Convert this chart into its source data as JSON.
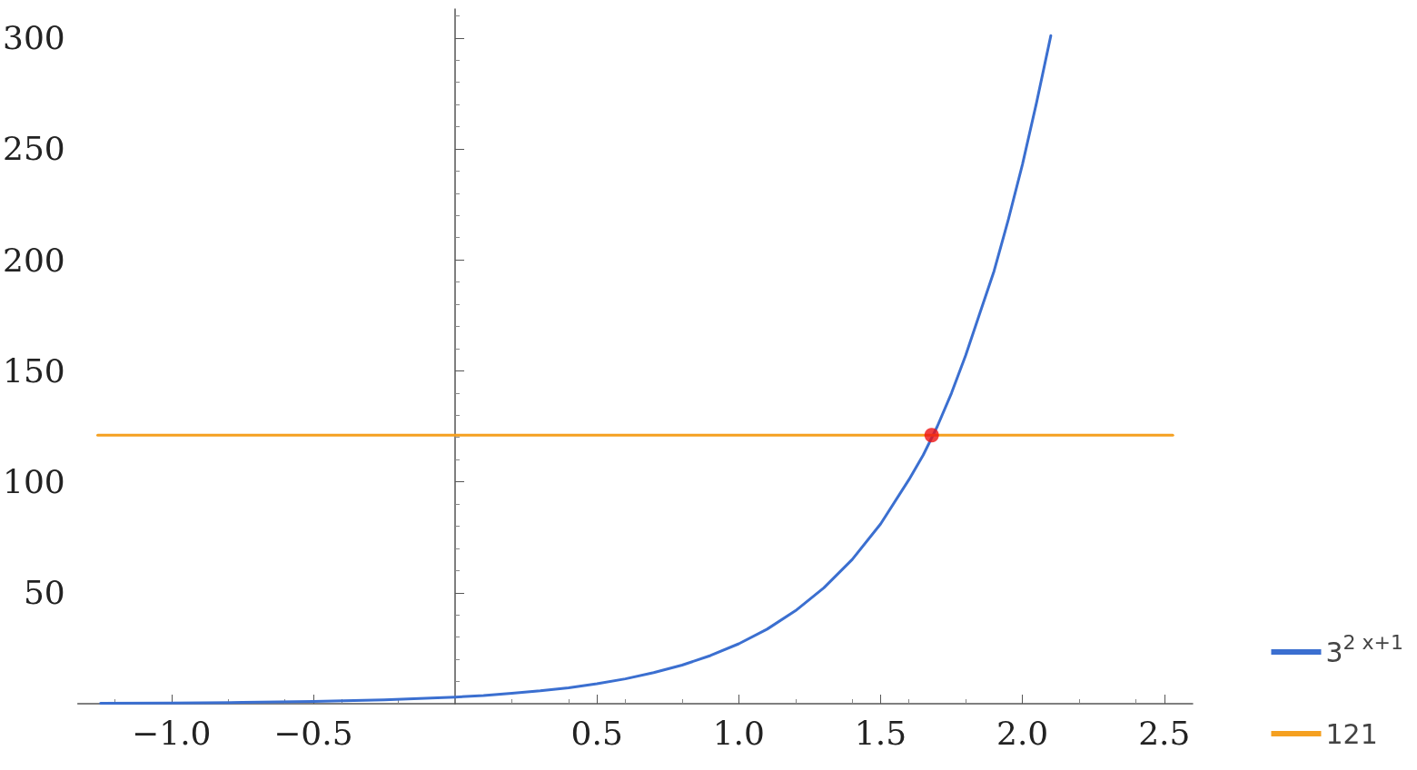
{
  "chart_data": {
    "type": "line",
    "xlim": [
      -1.33,
      2.6
    ],
    "ylim": [
      0,
      313
    ],
    "xticks": [
      {
        "value": -1,
        "label": "−1.0"
      },
      {
        "value": -0.5,
        "label": "−0.5"
      },
      {
        "value": 0.5,
        "label": "0.5"
      },
      {
        "value": 1,
        "label": "1.0"
      },
      {
        "value": 1.5,
        "label": "1.5"
      },
      {
        "value": 2,
        "label": "2.0"
      },
      {
        "value": 2.5,
        "label": "2.5"
      }
    ],
    "yticks": [
      50,
      100,
      150,
      200,
      250,
      300
    ],
    "grid": false,
    "legend": "bottom right",
    "series": [
      {
        "name": "3$^{2 x+1}$",
        "color": "#3b6fd0",
        "x": [
          -1.25,
          -1,
          -0.75,
          -0.5,
          -0.25,
          0,
          0.1,
          0.2,
          0.3,
          0.4,
          0.5,
          0.6,
          0.7,
          0.8,
          0.9,
          1,
          1.1,
          1.2,
          1.3,
          1.4,
          1.5,
          1.6,
          1.65,
          1.7,
          1.75,
          1.8,
          1.85,
          1.9,
          1.95,
          2,
          2.05,
          2.1
        ],
        "values": [
          0.19,
          0.33,
          0.58,
          1,
          1.7,
          3,
          3.7,
          4.7,
          5.8,
          7.2,
          9,
          11.2,
          14,
          17.4,
          21.7,
          27,
          33.6,
          41.9,
          52.2,
          65,
          81,
          101,
          112,
          125,
          140,
          157,
          176,
          195,
          218,
          243,
          271,
          301
        ]
      },
      {
        "name": "121",
        "color": "#f5a020",
        "x": [
          -1.26,
          2.53
        ],
        "values": [
          121,
          121
        ]
      },
      {
        "type": "scatter",
        "color": "#ee1111",
        "x": [
          1.68
        ],
        "values": [
          121
        ]
      }
    ]
  }
}
